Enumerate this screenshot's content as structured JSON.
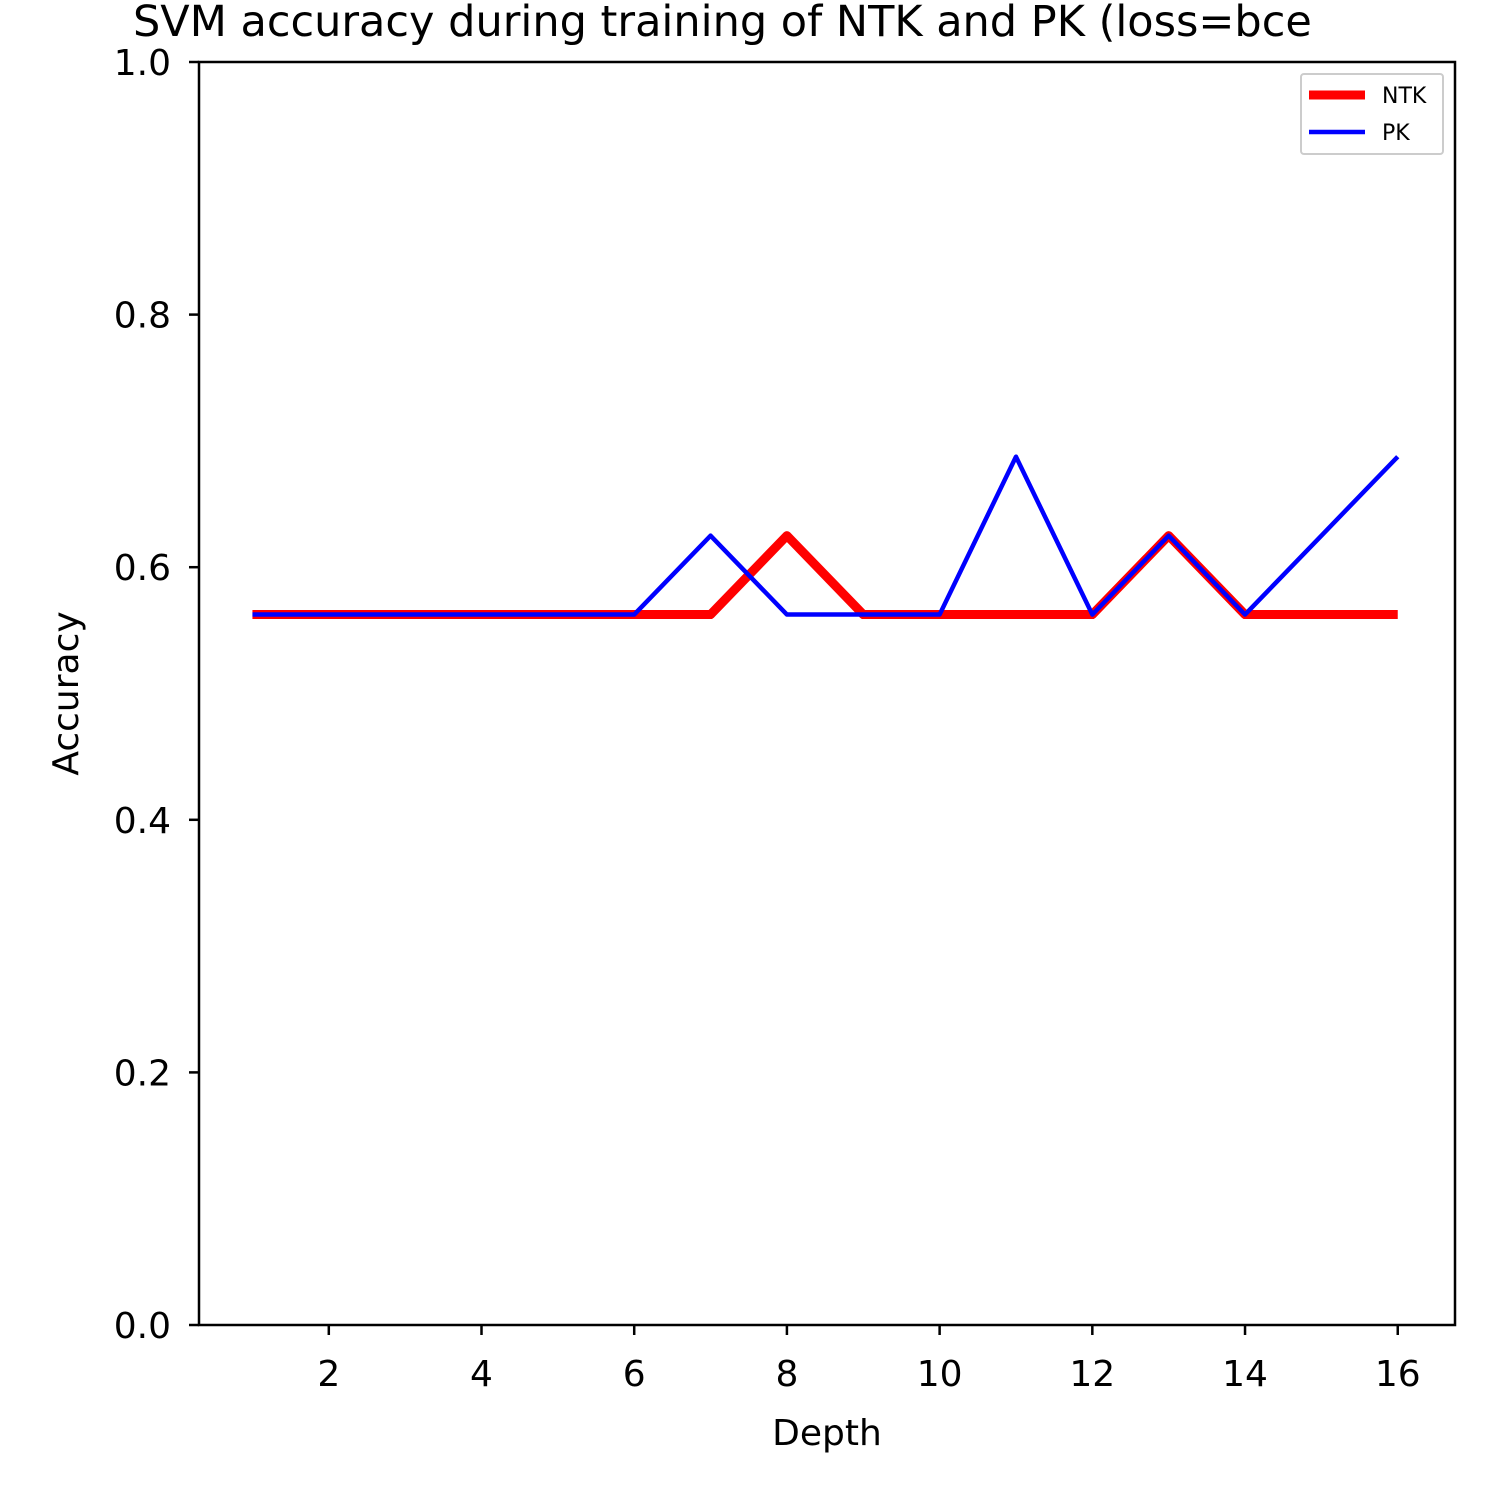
{
  "chart_data": {
    "type": "line",
    "title": "SVM accuracy during training of NTK and PK (loss=bce",
    "xlabel": "Depth",
    "ylabel": "Accuracy",
    "xlim": [
      0.3,
      16.75
    ],
    "ylim": [
      0.0,
      1.0
    ],
    "x_ticks": [
      2,
      4,
      6,
      8,
      10,
      12,
      14,
      16
    ],
    "y_ticks": [
      0.0,
      0.2,
      0.4,
      0.6,
      0.8,
      1.0
    ],
    "x_tick_labels": [
      "2",
      "4",
      "6",
      "8",
      "10",
      "12",
      "14",
      "16"
    ],
    "y_tick_labels": [
      "0.0",
      "0.2",
      "0.4",
      "0.6",
      "0.8",
      "1.0"
    ],
    "grid": false,
    "legend_position": "top-right",
    "x": [
      1,
      2,
      3,
      4,
      5,
      6,
      7,
      8,
      9,
      10,
      11,
      12,
      13,
      14,
      15,
      16
    ],
    "series": [
      {
        "name": "NTK",
        "color": "#ff0000",
        "values": [
          0.5625,
          0.5625,
          0.5625,
          0.5625,
          0.5625,
          0.5625,
          0.5625,
          0.625,
          0.5625,
          0.5625,
          0.5625,
          0.5625,
          0.625,
          0.5625,
          0.5625,
          0.5625
        ]
      },
      {
        "name": "PK",
        "color": "#0000ff",
        "values": [
          0.5625,
          0.5625,
          0.5625,
          0.5625,
          0.5625,
          0.5625,
          0.625,
          0.5625,
          0.5625,
          0.5625,
          0.6875,
          0.5625,
          0.625,
          0.5625,
          0.625,
          0.6875
        ]
      }
    ]
  }
}
